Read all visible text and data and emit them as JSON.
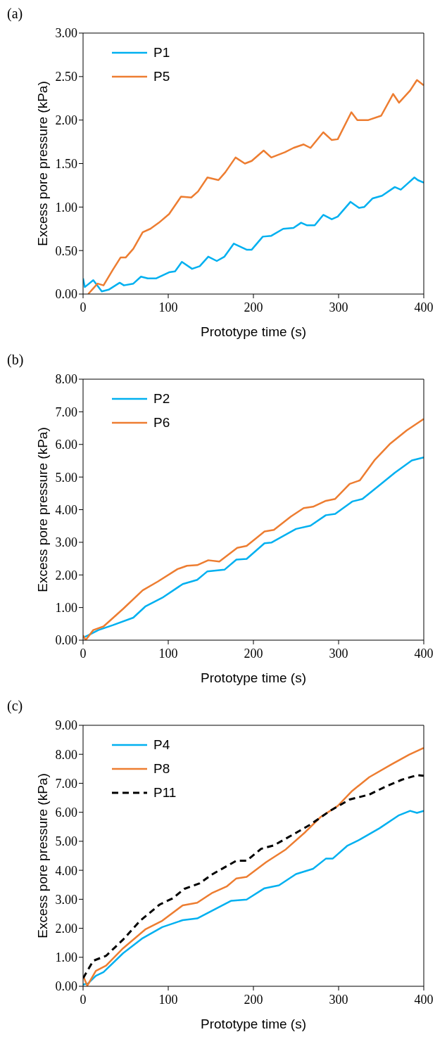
{
  "chart_data": [
    {
      "type": "line",
      "title": "(a)",
      "xlabel": "Prototype time (s)",
      "ylabel": "Excess pore pressure (kPa)",
      "xlim": [
        0,
        400
      ],
      "xticks": [
        0,
        100,
        200,
        300,
        400
      ],
      "ylim": [
        0,
        3
      ],
      "yticks": [
        {
          "value": 0,
          "label": "0.00"
        },
        {
          "value": 0.5,
          "label": "0.50"
        },
        {
          "value": 1,
          "label": "1.00"
        },
        {
          "value": 1.5,
          "label": "1.50"
        },
        {
          "value": 2,
          "label": "2.00"
        },
        {
          "value": 2.5,
          "label": "2.50"
        },
        {
          "value": 3,
          "label": "3.00"
        }
      ],
      "grid": false,
      "legend": "top left",
      "marker": "none",
      "series": [
        {
          "name": "P1",
          "color": "#00b0f0",
          "line_style": "solid",
          "x": [
            0,
            2,
            12,
            22,
            30,
            43,
            48,
            59,
            68,
            76,
            86,
            101,
            108,
            116,
            128,
            137,
            147,
            157,
            166,
            177,
            192,
            198,
            211,
            221,
            235,
            247,
            256,
            263,
            272,
            282,
            292,
            299,
            314,
            324,
            330,
            340,
            351,
            366,
            373,
            389,
            393,
            400
          ],
          "values": [
            0.18,
            0.08,
            0.16,
            0.03,
            0.05,
            0.13,
            0.1,
            0.12,
            0.2,
            0.18,
            0.18,
            0.25,
            0.26,
            0.37,
            0.29,
            0.32,
            0.43,
            0.38,
            0.43,
            0.58,
            0.51,
            0.51,
            0.66,
            0.67,
            0.75,
            0.76,
            0.82,
            0.79,
            0.79,
            0.91,
            0.86,
            0.89,
            1.06,
            0.99,
            1.0,
            1.1,
            1.13,
            1.23,
            1.2,
            1.34,
            1.31,
            1.28
          ]
        },
        {
          "name": "P5",
          "color": "#ed7d31",
          "line_style": "solid",
          "x": [
            6,
            17,
            24,
            35,
            44,
            50,
            59,
            70,
            79,
            89,
            101,
            115,
            127,
            135,
            146,
            159,
            167,
            179,
            190,
            198,
            212,
            221,
            237,
            247,
            259,
            267,
            282,
            292,
            299,
            315,
            322,
            335,
            350,
            364,
            371,
            384,
            392,
            400
          ],
          "values": [
            0,
            0.12,
            0.1,
            0.28,
            0.42,
            0.42,
            0.52,
            0.71,
            0.75,
            0.82,
            0.92,
            1.12,
            1.11,
            1.18,
            1.34,
            1.31,
            1.4,
            1.57,
            1.5,
            1.53,
            1.65,
            1.57,
            1.63,
            1.68,
            1.72,
            1.68,
            1.86,
            1.77,
            1.78,
            2.09,
            2.0,
            2.0,
            2.05,
            2.3,
            2.2,
            2.34,
            2.46,
            2.4
          ]
        }
      ]
    },
    {
      "type": "line",
      "title": "(b)",
      "xlabel": "Prototype time (s)",
      "ylabel": "Excess pore pressure (kPa)",
      "xlim": [
        0,
        400
      ],
      "xticks": [
        0,
        100,
        200,
        300,
        400
      ],
      "ylim": [
        0,
        8
      ],
      "yticks": [
        {
          "value": 0,
          "label": "0.00"
        },
        {
          "value": 1,
          "label": "1.00"
        },
        {
          "value": 2,
          "label": "2.00"
        },
        {
          "value": 3,
          "label": "3.00"
        },
        {
          "value": 4,
          "label": "4.00"
        },
        {
          "value": 5,
          "label": "5.00"
        },
        {
          "value": 6,
          "label": "6.00"
        },
        {
          "value": 7,
          "label": "7.00"
        },
        {
          "value": 8,
          "label": "8.00"
        }
      ],
      "grid": false,
      "legend": "top left",
      "marker": "none",
      "series": [
        {
          "name": "P2",
          "color": "#00b0f0",
          "line_style": "solid",
          "x": [
            0,
            6,
            18,
            35,
            59,
            73,
            93,
            117,
            134,
            146,
            166,
            180,
            192,
            213,
            221,
            250,
            267,
            285,
            296,
            316,
            328,
            348,
            366,
            386,
            400
          ],
          "values": [
            0.08,
            0.15,
            0.31,
            0.46,
            0.69,
            1.03,
            1.3,
            1.72,
            1.85,
            2.11,
            2.16,
            2.47,
            2.49,
            2.97,
            2.99,
            3.41,
            3.51,
            3.83,
            3.87,
            4.25,
            4.33,
            4.75,
            5.13,
            5.51,
            5.6
          ]
        },
        {
          "name": "P6",
          "color": "#ed7d31",
          "line_style": "solid",
          "x": [
            0,
            3,
            12,
            24,
            47,
            70,
            88,
            111,
            122,
            134,
            147,
            160,
            181,
            192,
            213,
            224,
            244,
            259,
            270,
            285,
            296,
            313,
            325,
            342,
            360,
            380,
            400
          ],
          "values": [
            0.15,
            0,
            0.31,
            0.42,
            0.96,
            1.53,
            1.8,
            2.18,
            2.28,
            2.3,
            2.45,
            2.41,
            2.83,
            2.89,
            3.33,
            3.38,
            3.79,
            4.05,
            4.09,
            4.27,
            4.33,
            4.79,
            4.9,
            5.51,
            6.01,
            6.43,
            6.78
          ]
        }
      ]
    },
    {
      "type": "line",
      "title": "(c)",
      "xlabel": "Prototype time (s)",
      "ylabel": "Excess pore pressure (kPa)",
      "xlim": [
        0,
        400
      ],
      "xticks": [
        0,
        100,
        200,
        300,
        400
      ],
      "ylim": [
        0,
        9
      ],
      "yticks": [
        {
          "value": 0,
          "label": "0.00"
        },
        {
          "value": 1,
          "label": "1.00"
        },
        {
          "value": 2,
          "label": "2.00"
        },
        {
          "value": 3,
          "label": "3.00"
        },
        {
          "value": 4,
          "label": "4.00"
        },
        {
          "value": 5,
          "label": "5.00"
        },
        {
          "value": 6,
          "label": "6.00"
        },
        {
          "value": 7,
          "label": "7.00"
        },
        {
          "value": 8,
          "label": "8.00"
        },
        {
          "value": 9,
          "label": "9.00"
        }
      ],
      "grid": false,
      "legend": "top left",
      "marker": "none",
      "series": [
        {
          "name": "P4",
          "color": "#00b0f0",
          "line_style": "solid",
          "x": [
            0,
            6,
            15,
            24,
            47,
            70,
            93,
            117,
            134,
            151,
            174,
            192,
            213,
            230,
            250,
            270,
            285,
            293,
            310,
            325,
            348,
            371,
            384,
            392,
            400
          ],
          "values": [
            0.06,
            0.1,
            0.36,
            0.49,
            1.14,
            1.66,
            2.04,
            2.28,
            2.34,
            2.6,
            2.95,
            2.99,
            3.38,
            3.48,
            3.87,
            4.05,
            4.4,
            4.4,
            4.84,
            5.06,
            5.45,
            5.9,
            6.05,
            5.98,
            6.05
          ]
        },
        {
          "name": "P8",
          "color": "#ed7d31",
          "line_style": "solid",
          "x": [
            0,
            5,
            15,
            27,
            47,
            73,
            93,
            117,
            134,
            151,
            169,
            180,
            192,
            215,
            238,
            261,
            279,
            299,
            316,
            336,
            362,
            383,
            400
          ],
          "values": [
            0.36,
            0.02,
            0.53,
            0.71,
            1.31,
            1.96,
            2.26,
            2.79,
            2.88,
            3.21,
            3.45,
            3.72,
            3.77,
            4.28,
            4.72,
            5.32,
            5.84,
            6.22,
            6.74,
            7.21,
            7.65,
            7.99,
            8.22
          ]
        },
        {
          "name": "P11",
          "color": "#000000",
          "line_style": "dashed",
          "x": [
            0,
            5,
            12,
            27,
            47,
            67,
            90,
            105,
            119,
            137,
            151,
            180,
            192,
            209,
            224,
            244,
            267,
            290,
            313,
            336,
            354,
            374,
            392,
            400
          ],
          "values": [
            0.28,
            0.53,
            0.88,
            1.05,
            1.61,
            2.26,
            2.82,
            3.03,
            3.36,
            3.55,
            3.85,
            4.33,
            4.33,
            4.74,
            4.86,
            5.19,
            5.58,
            6.05,
            6.44,
            6.61,
            6.87,
            7.12,
            7.28,
            7.26
          ]
        }
      ]
    }
  ]
}
